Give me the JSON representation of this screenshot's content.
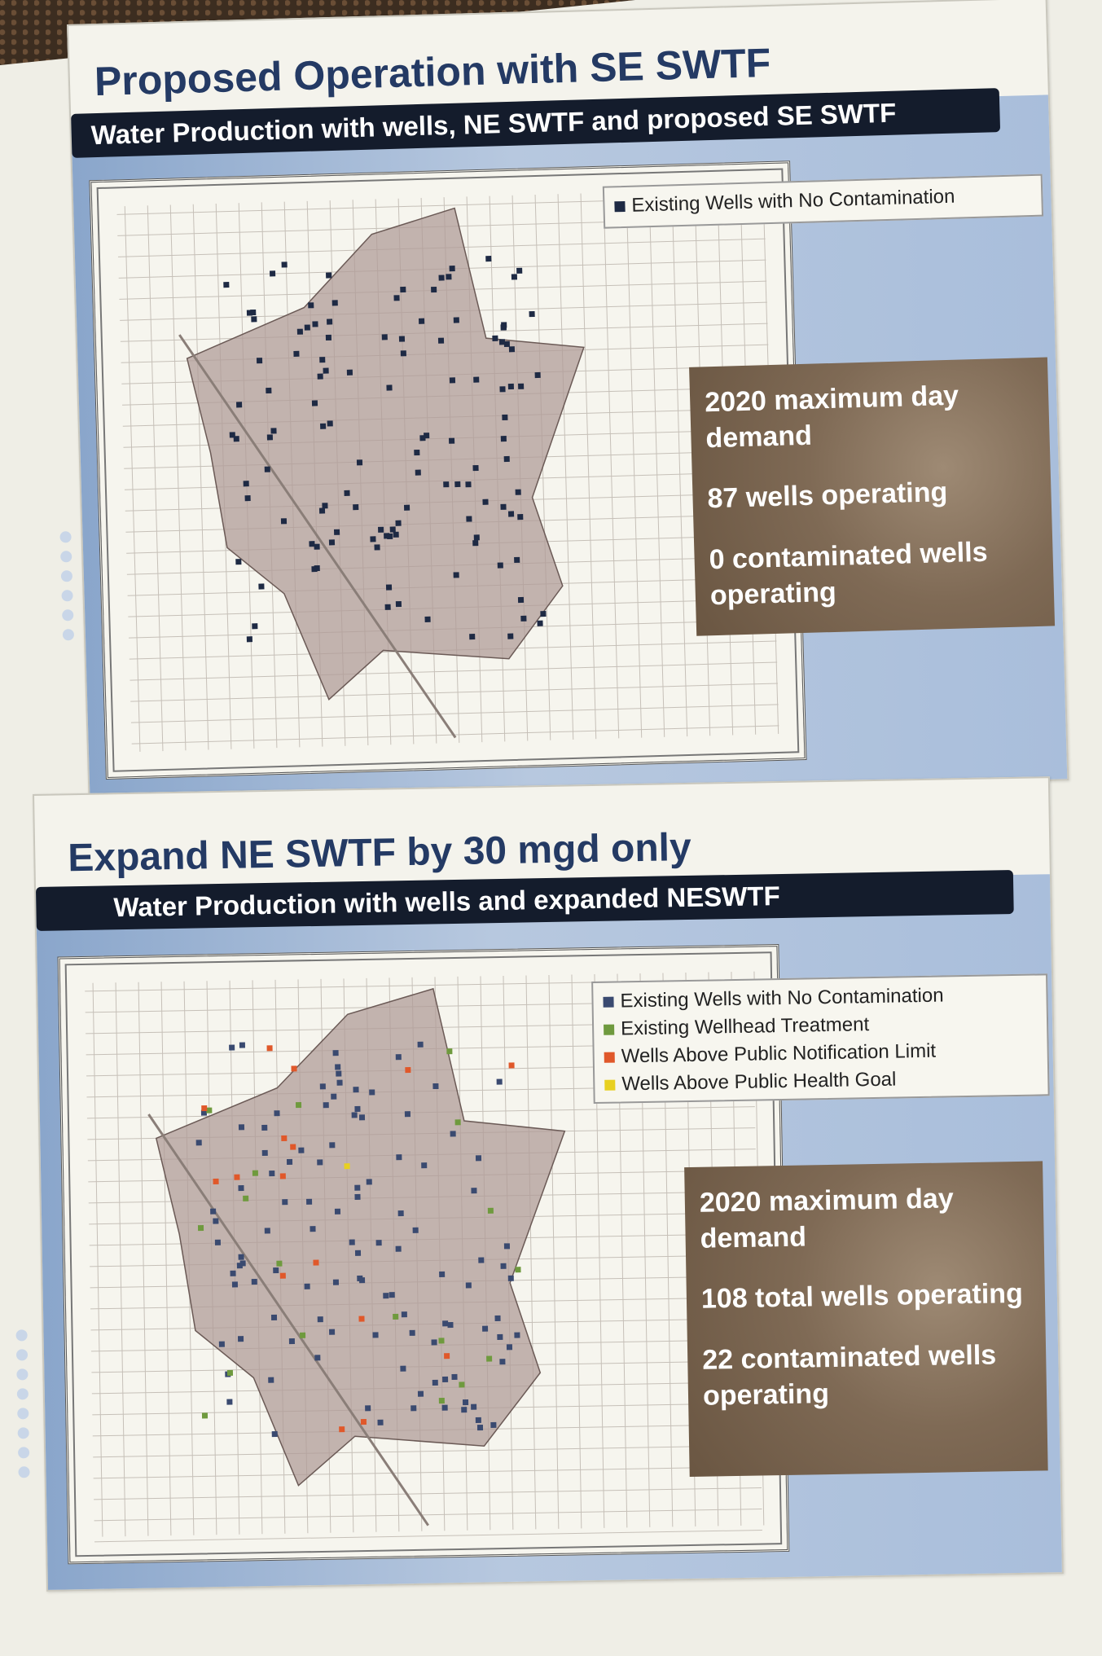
{
  "slide1": {
    "title": "Proposed Operation with SE SWTF",
    "banner": "Water Production with wells, NE SWTF and proposed SE SWTF",
    "legend": [
      {
        "label": "Existing Wells with No Contamination",
        "color": "#1e2a44"
      }
    ],
    "info": {
      "line1": "2020 maximum day demand",
      "line2": "87 wells operating",
      "line3": "0 contaminated wells operating"
    }
  },
  "slide2": {
    "title": "Expand NE SWTF by 30 mgd only",
    "banner": "Water Production with wells and expanded NESWTF",
    "legend": [
      {
        "label": "Existing Wells with No Contamination",
        "color": "#3a4a70"
      },
      {
        "label": "Existing Wellhead Treatment",
        "color": "#6f9a3e"
      },
      {
        "label": "Wells Above Public Notification Limit",
        "color": "#e0582a"
      },
      {
        "label": "Wells Above Public Health Goal",
        "color": "#e8d020"
      }
    ],
    "info": {
      "line1": "2020 maximum day demand",
      "line2": "108 total wells operating",
      "line3": "22 contaminated wells operating"
    }
  },
  "colors": {
    "title": "#243a64",
    "banner": "#141c2c",
    "urban_area": "#b09c98",
    "blue_band": "#a9bedb",
    "info_box": "#7f6a55"
  }
}
